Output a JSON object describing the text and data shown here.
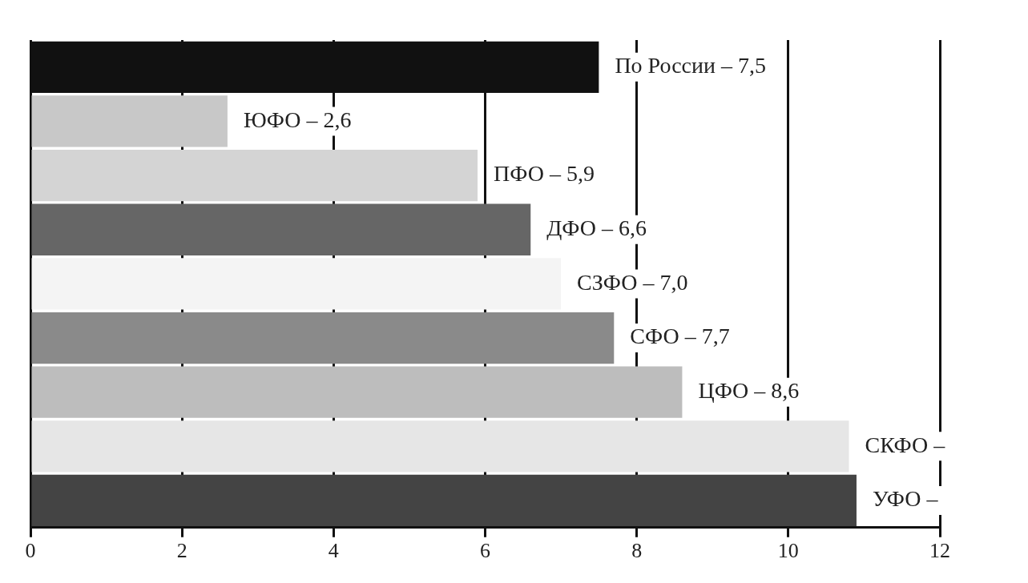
{
  "chart_data": {
    "type": "bar",
    "orientation": "horizontal",
    "categories": [
      "По России – 7,5",
      "ЮФО – 2,6",
      "ПФО – 5,9",
      "ДФО – 6,6",
      "СЗФО – 7,0",
      "СФО – 7,7",
      "ЦФО – 8,6",
      "СКФО –",
      "УФО –"
    ],
    "values": [
      7.5,
      2.6,
      5.9,
      6.6,
      7.0,
      7.7,
      8.6,
      10.8,
      10.9
    ],
    "colors": [
      "#111111",
      "#c8c8c8",
      "#d4d4d4",
      "#666666",
      "#f4f4f4",
      "#8a8a8a",
      "#bdbdbd",
      "#e6e6e6",
      "#444444"
    ],
    "xlim": [
      0,
      12
    ],
    "xticks": [
      0,
      2,
      4,
      6,
      8,
      10,
      12
    ],
    "grid": "x",
    "legend": false
  }
}
